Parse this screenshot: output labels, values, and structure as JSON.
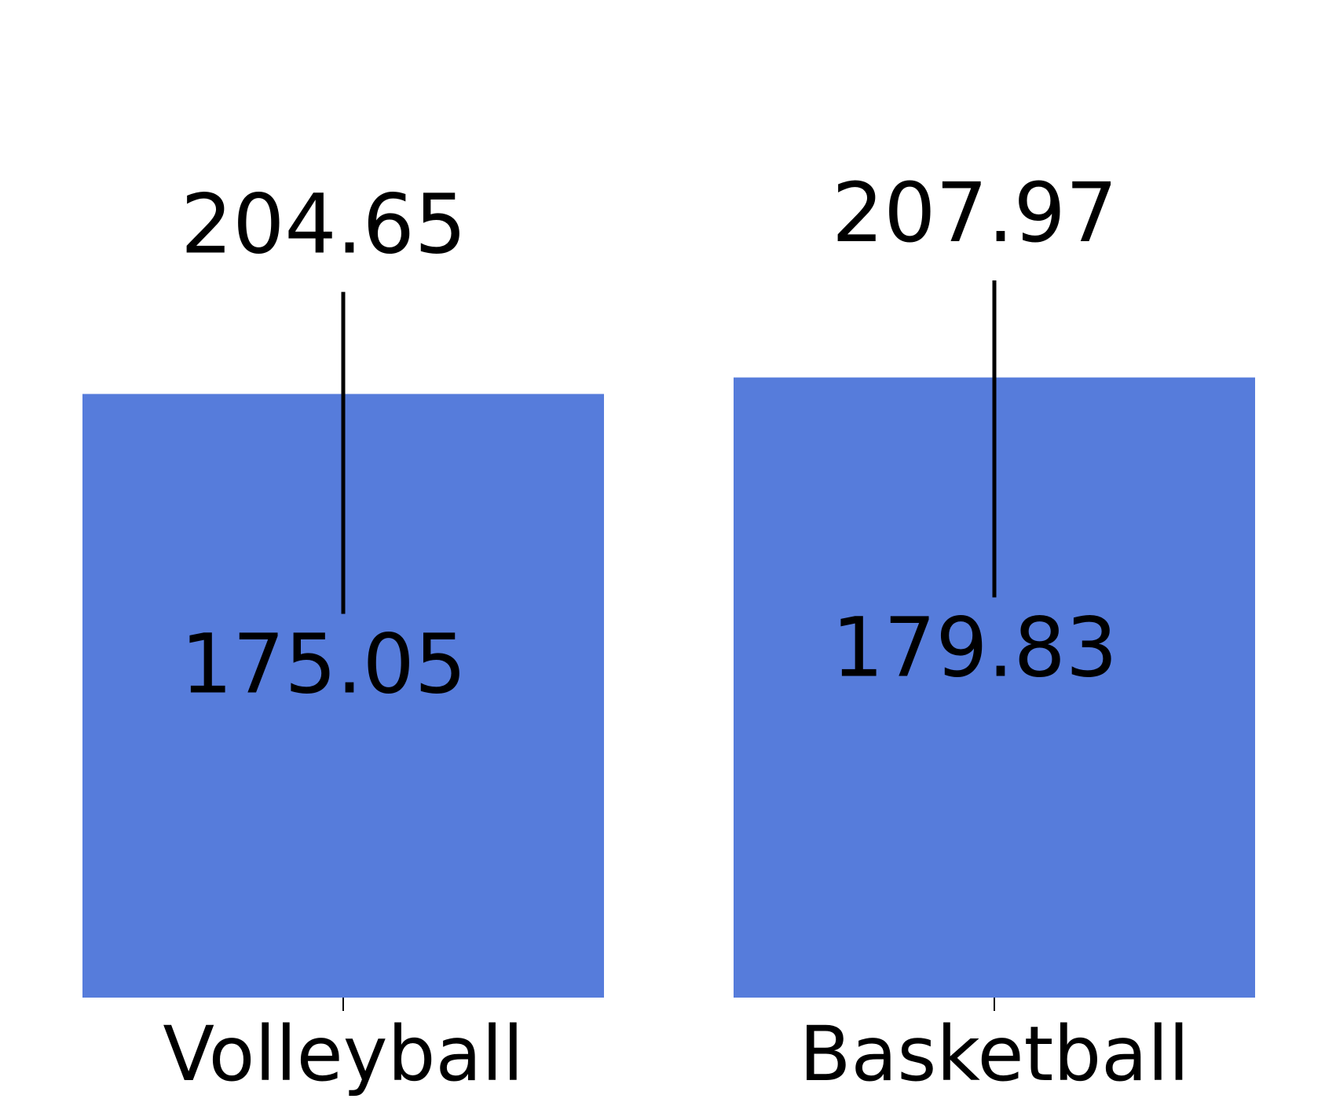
{
  "chart_data": {
    "type": "bar",
    "categories": [
      "Volleyball",
      "Basketball"
    ],
    "values": [
      175.05,
      179.83
    ],
    "value_labels": [
      "175.05",
      "179.83"
    ],
    "error_upper": [
      204.65,
      207.97
    ],
    "error_upper_labels": [
      "204.65",
      "207.97"
    ],
    "title": "",
    "xlabel": "",
    "ylabel": "",
    "ylim": [
      0,
      224
    ],
    "grid": false,
    "legend": "none",
    "colors": {
      "bar": "#567cdb",
      "error_bar": "#000000",
      "text": "#000000"
    }
  }
}
